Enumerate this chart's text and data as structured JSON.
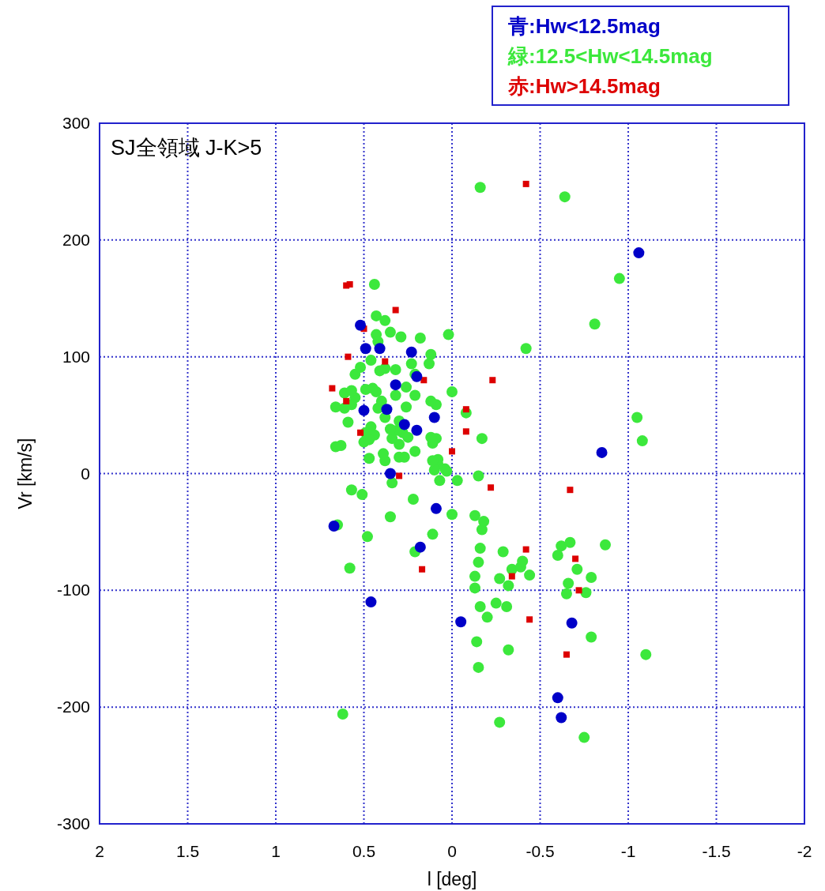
{
  "chart_data": {
    "type": "scatter",
    "title": "SJ全領域  J-K>5",
    "xlabel": "l [deg]",
    "ylabel": "Vr [km/s]",
    "xlim": [
      2,
      -2
    ],
    "xticks": [
      2,
      1.5,
      1,
      0.5,
      0,
      -0.5,
      -1,
      -1.5,
      -2
    ],
    "ylim": [
      -300,
      300
    ],
    "yticks": [
      -300,
      -200,
      -100,
      0,
      100,
      200,
      300
    ],
    "grid": true,
    "legend": "top right",
    "series": [
      {
        "name": "青:Hw<12.5mag",
        "color": "#0000c8",
        "marker": "circle",
        "x": [
          0.52,
          0.49,
          0.41,
          0.23,
          0.32,
          0.2,
          0.5,
          0.37,
          0.27,
          0.2,
          0.1,
          0.35,
          0.09,
          0.18,
          0.67,
          0.46,
          -0.05,
          -0.68,
          -1.06,
          -0.85,
          -0.6,
          -0.62
        ],
        "values": [
          127,
          107,
          107,
          104,
          76,
          83,
          54,
          55,
          42,
          37,
          48,
          0,
          -30,
          -63,
          -45,
          -110,
          -127,
          -128,
          189,
          18,
          -192,
          -209
        ]
      },
      {
        "name": "緑:12.5<Hw<14.5mag",
        "color": "#3ce83c",
        "marker": "circle",
        "x": [
          -0.16,
          -0.64,
          -0.95,
          -0.81,
          -0.42,
          -1.05,
          -1.08,
          -0.87,
          -0.62,
          -0.67,
          -0.6,
          -0.66,
          -0.71,
          -0.76,
          -0.79,
          -0.65,
          -0.79,
          -1.1,
          -0.75,
          -0.27,
          -0.32,
          -0.25,
          -0.31,
          -0.27,
          -0.29,
          -0.34,
          -0.32,
          -0.39,
          -0.4,
          -0.44,
          -0.15,
          -0.14,
          -0.13,
          -0.13,
          -0.15,
          -0.16,
          -0.16,
          -0.2,
          -0.17,
          -0.18,
          -0.13,
          -0.15,
          -0.17,
          -0.08,
          0,
          0,
          -0.03,
          0.03,
          0.04,
          0.08,
          0.1,
          0.08,
          0.11,
          0.09,
          0.11,
          0.12,
          0.09,
          0.12,
          0.11,
          0.07,
          0.02,
          0.12,
          0.13,
          0.18,
          0.21,
          0.21,
          0.23,
          0.26,
          0.26,
          0.28,
          0.25,
          0.3,
          0.27,
          0.3,
          0.31,
          0.3,
          0.32,
          0.32,
          0.29,
          0.35,
          0.38,
          0.43,
          0.43,
          0.42,
          0.38,
          0.41,
          0.43,
          0.45,
          0.42,
          0.46,
          0.44,
          0.49,
          0.5,
          0.47,
          0.49,
          0.55,
          0.57,
          0.61,
          0.66,
          0.61,
          0.57,
          0.59,
          0.63,
          0.66,
          0.55,
          0.52,
          0.46,
          0.44,
          0.47,
          0.38,
          0.38,
          0.34,
          0.35,
          0.4,
          0.39,
          0.34,
          0.35,
          0.57,
          0.51,
          0.58,
          0.48,
          0.65,
          0.21,
          0.22,
          0.62,
          0.21
        ],
        "values": [
          245,
          237,
          167,
          128,
          107,
          48,
          28,
          -61,
          -62,
          -59,
          -70,
          -94,
          -82,
          -102,
          -89,
          -103,
          -140,
          -155,
          -226,
          -213,
          -151,
          -111,
          -114,
          -90,
          -67,
          -82,
          -96,
          -80,
          -75,
          -87,
          -166,
          -144,
          -98,
          -88,
          -76,
          -64,
          -114,
          -123,
          -48,
          -41,
          -36,
          -2,
          30,
          52,
          70,
          -35,
          -6,
          2,
          4,
          8,
          3,
          12,
          11,
          30,
          26,
          31,
          59,
          62,
          -52,
          -6,
          119,
          102,
          94,
          116,
          85,
          67,
          94,
          74,
          57,
          35,
          31,
          14,
          14,
          25,
          37,
          45,
          67,
          89,
          117,
          121,
          131,
          135,
          119,
          113,
          90,
          88,
          70,
          73,
          56,
          40,
          33,
          35,
          27,
          29,
          72,
          65,
          59,
          56,
          57,
          69,
          71,
          44,
          24,
          23,
          85,
          91,
          97,
          162,
          13,
          11,
          48,
          30,
          38,
          62,
          17,
          -8,
          -37,
          -14,
          -18,
          -81,
          -54,
          -44,
          -67,
          -22,
          -206,
          19
        ]
      },
      {
        "name": "赤:Hw>14.5mag",
        "color": "#dd0000",
        "marker": "square",
        "x": [
          0.6,
          0.58,
          0.32,
          0.5,
          0.59,
          0.38,
          0.68,
          0.6,
          0.52,
          0.16,
          -0.23,
          -0.42,
          -0.08,
          -0.08,
          0,
          0.3,
          -0.22,
          -0.67,
          0.17,
          -0.42,
          -0.34,
          -0.44,
          -0.7,
          -0.72,
          -0.65
        ],
        "values": [
          161,
          162,
          140,
          124,
          100,
          96,
          73,
          62,
          35,
          80,
          80,
          248,
          55,
          36,
          19,
          -2,
          -12,
          -14,
          -82,
          -65,
          -88,
          -125,
          -73,
          -100,
          -155
        ]
      }
    ]
  }
}
